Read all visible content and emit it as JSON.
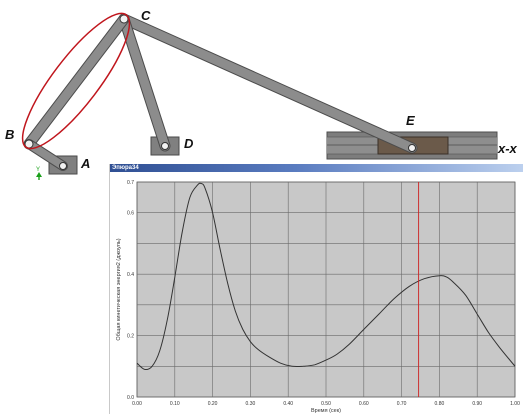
{
  "mechanism": {
    "labels": {
      "a": "A",
      "b": "B",
      "c": "C",
      "d": "D",
      "e": "E",
      "guide": "x-x"
    },
    "triad": {
      "y": "Y",
      "x": "X"
    },
    "link_color": "#8c8c8c",
    "highlight_color": "#c0161d"
  },
  "window": {
    "title": "Эпюра34"
  },
  "chart_data": {
    "type": "line",
    "xlabel": "Время (сек)",
    "ylabel": "Общая кинетическая энергия2 (джоуль)",
    "xlim": [
      0,
      1.0
    ],
    "ylim": [
      0,
      0.7
    ],
    "xticks": [
      "0.00",
      "0.10",
      "0.20",
      "0.30",
      "0.40",
      "0.50",
      "0.60",
      "0.70",
      "0.80",
      "0.90",
      "1.00"
    ],
    "yticks": [
      "0.0",
      "0.2",
      "0.4",
      "0.6",
      "0.7"
    ],
    "series": [
      {
        "x": [
          0.0,
          0.02,
          0.04,
          0.06,
          0.08,
          0.1,
          0.12,
          0.14,
          0.16,
          0.17,
          0.18,
          0.2,
          0.22,
          0.24,
          0.26,
          0.28,
          0.3,
          0.32,
          0.35,
          0.38,
          0.41,
          0.44,
          0.47,
          0.5,
          0.53,
          0.56,
          0.6,
          0.64,
          0.68,
          0.72,
          0.76,
          0.8,
          0.82,
          0.84,
          0.87,
          0.9,
          0.93,
          0.96,
          1.0
        ],
        "y": [
          0.11,
          0.09,
          0.1,
          0.15,
          0.25,
          0.39,
          0.54,
          0.65,
          0.69,
          0.695,
          0.68,
          0.6,
          0.48,
          0.37,
          0.28,
          0.22,
          0.18,
          0.155,
          0.13,
          0.11,
          0.1,
          0.1,
          0.105,
          0.12,
          0.14,
          0.17,
          0.22,
          0.27,
          0.32,
          0.36,
          0.385,
          0.395,
          0.39,
          0.37,
          0.33,
          0.27,
          0.21,
          0.16,
          0.1
        ],
        "color": "#333333"
      }
    ],
    "cursor": {
      "x": 0.745,
      "color": "#cc2222"
    },
    "grid": true,
    "background": "#c8c8c8"
  }
}
